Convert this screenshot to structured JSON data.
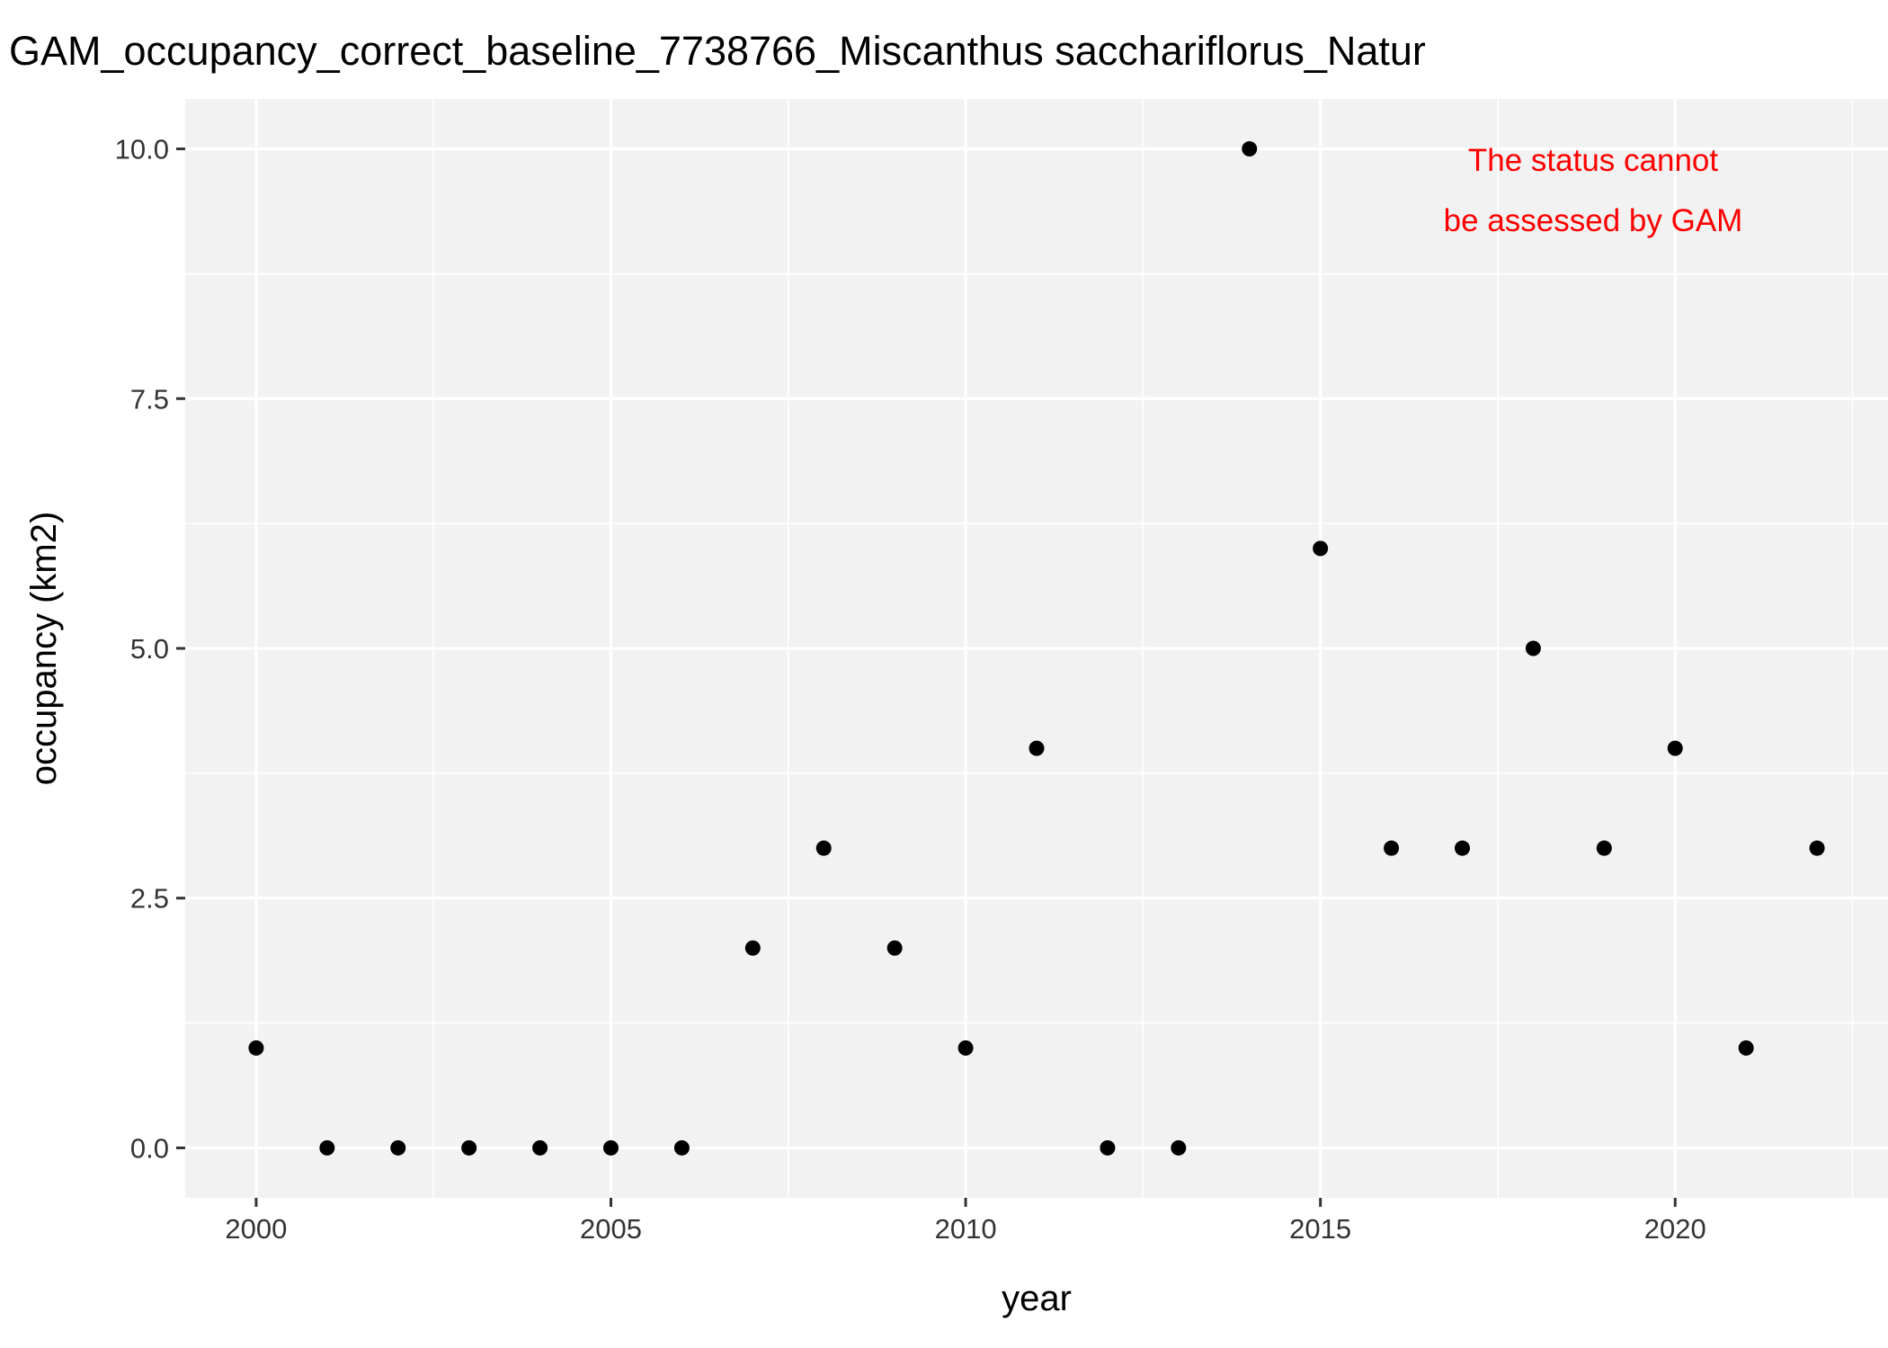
{
  "chart_data": {
    "type": "scatter",
    "title": "GAM_occupancy_correct_baseline_7738766_Miscanthus sacchariflorus_Natur",
    "xlabel": "year",
    "ylabel": "occupancy (km2)",
    "xlim": [
      1999,
      2023
    ],
    "ylim": [
      -0.5,
      10.5
    ],
    "x_ticks": [
      2000,
      2005,
      2010,
      2015,
      2020
    ],
    "x_tick_labels": [
      "2000",
      "2005",
      "2010",
      "2015",
      "2020"
    ],
    "y_ticks": [
      0,
      2.5,
      5,
      7.5,
      10
    ],
    "y_tick_labels": [
      "0.0",
      "2.5",
      "5.0",
      "7.5",
      "10.0"
    ],
    "grid": true,
    "legend": "none",
    "colors": {
      "panel_background": "#f2f2f2",
      "grid": "#ffffff",
      "point": "#000000",
      "annotation": "#ff0000"
    },
    "points": [
      {
        "x": 2000,
        "y": 1
      },
      {
        "x": 2001,
        "y": 0
      },
      {
        "x": 2002,
        "y": 0
      },
      {
        "x": 2003,
        "y": 0
      },
      {
        "x": 2004,
        "y": 0
      },
      {
        "x": 2005,
        "y": 0
      },
      {
        "x": 2006,
        "y": 0
      },
      {
        "x": 2007,
        "y": 2
      },
      {
        "x": 2008,
        "y": 3
      },
      {
        "x": 2009,
        "y": 2
      },
      {
        "x": 2010,
        "y": 1
      },
      {
        "x": 2011,
        "y": 4
      },
      {
        "x": 2012,
        "y": 0
      },
      {
        "x": 2013,
        "y": 0
      },
      {
        "x": 2014,
        "y": 10
      },
      {
        "x": 2015,
        "y": 6
      },
      {
        "x": 2016,
        "y": 3
      },
      {
        "x": 2017,
        "y": 3
      },
      {
        "x": 2018,
        "y": 5
      },
      {
        "x": 2019,
        "y": 3
      },
      {
        "x": 2020,
        "y": 4
      },
      {
        "x": 2021,
        "y": 1
      },
      {
        "x": 2022,
        "y": 3
      }
    ],
    "annotation": {
      "lines": [
        "The status cannot",
        "be assessed by GAM"
      ],
      "position": "top-right"
    }
  }
}
